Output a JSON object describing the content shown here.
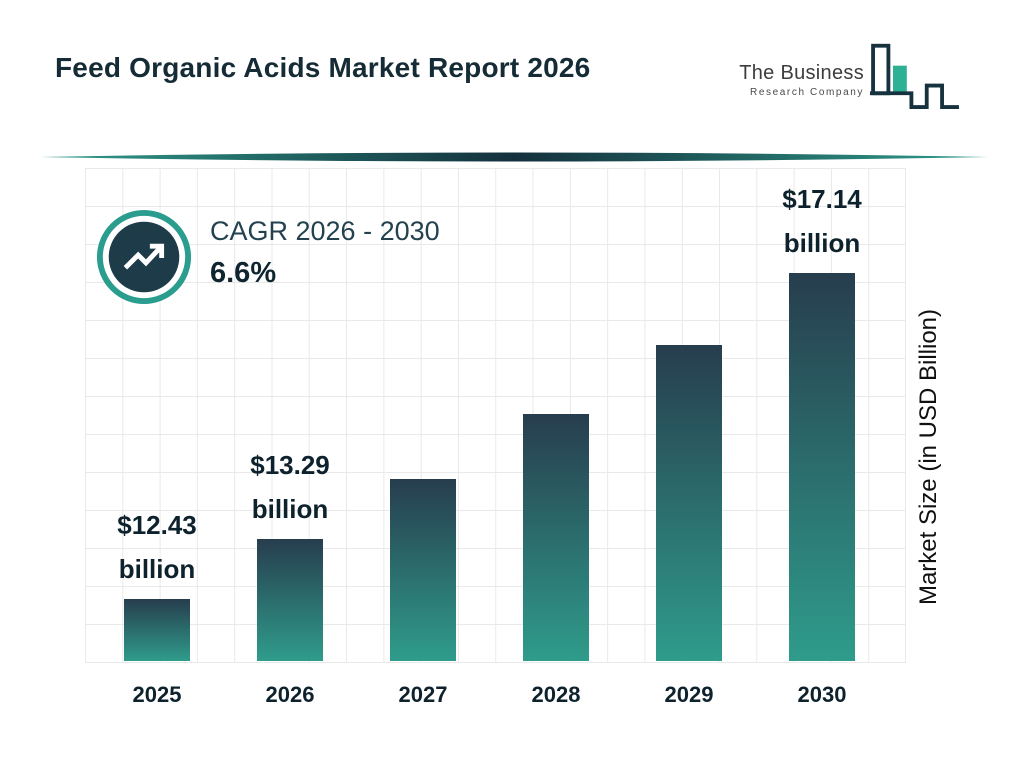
{
  "header": {
    "title": "Feed Organic Acids Market Report 2026",
    "logo": {
      "line1": "The Business",
      "line2": "Research Company",
      "icon": "bar-chart-logo-icon"
    }
  },
  "cagr": {
    "icon": "trend-up-icon",
    "label": "CAGR 2026 - 2030",
    "value": "6.6%"
  },
  "colors": {
    "accent_teal": "#2a9d8f",
    "dark_navy": "#1d3b49",
    "bar_gradient_top": "#273d4e",
    "bar_gradient_bottom": "#2f9c8b",
    "logo_green": "#2db093",
    "grid_line": "#e9e9e9",
    "text_dark": "#0e222d"
  },
  "chart_data": {
    "type": "bar",
    "title": "Feed Organic Acids Market Report 2026",
    "categories": [
      "2025",
      "2026",
      "2027",
      "2028",
      "2029",
      "2030"
    ],
    "values": [
      12.43,
      13.29,
      14.17,
      15.1,
      16.1,
      17.14
    ],
    "bar_labels": [
      {
        "amount": "$12.43",
        "unit": "billion"
      },
      {
        "amount": "$13.29",
        "unit": "billion"
      },
      null,
      null,
      null,
      {
        "amount": "$17.14",
        "unit": "billion"
      }
    ],
    "xlabel": "",
    "ylabel": "Market Size (in USD Billion)",
    "grid": true,
    "value_axis_ticks_hidden": true,
    "legend": "none"
  }
}
